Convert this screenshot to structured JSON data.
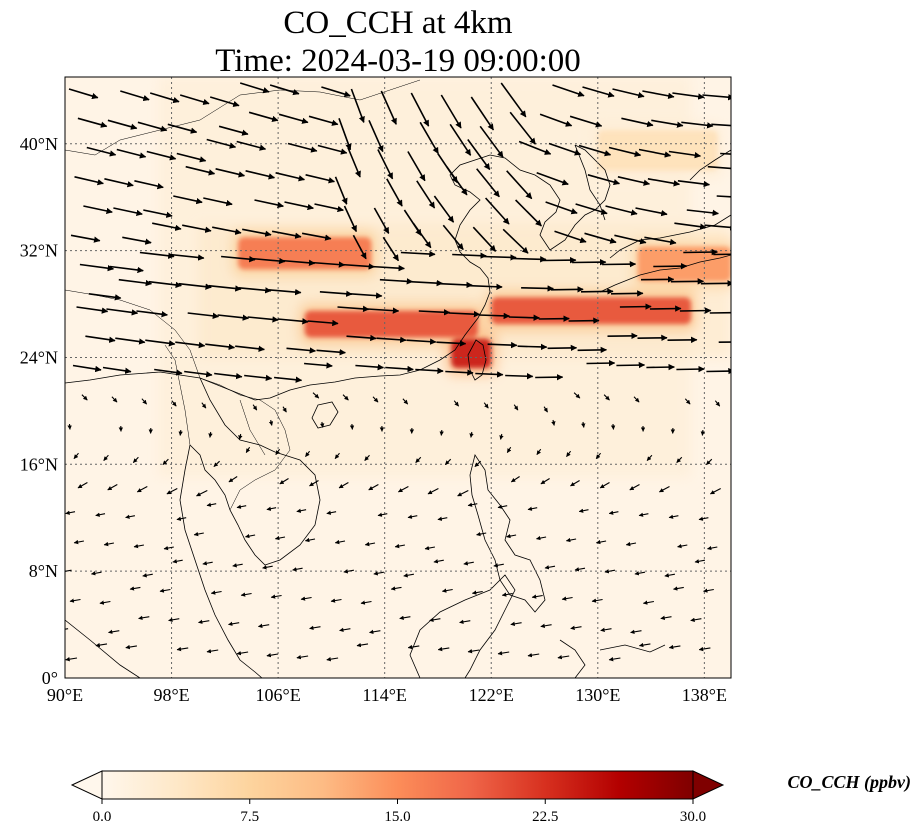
{
  "title": {
    "line1": "CO_CCH at 4km",
    "line2": "Time: 2024-03-19 09:00:00"
  },
  "map": {
    "projection": "PlateCarree",
    "lon_range": [
      90,
      140
    ],
    "lat_range": [
      0,
      45
    ],
    "lon_ticks": [
      {
        "value": 90,
        "label": "90°E"
      },
      {
        "value": 98,
        "label": "98°E"
      },
      {
        "value": 106,
        "label": "106°E"
      },
      {
        "value": 114,
        "label": "114°E"
      },
      {
        "value": 122,
        "label": "122°E"
      },
      {
        "value": 130,
        "label": "130°E"
      },
      {
        "value": 138,
        "label": "138°E"
      }
    ],
    "lat_ticks": [
      {
        "value": 0,
        "label": "0°"
      },
      {
        "value": 8,
        "label": "8°N"
      },
      {
        "value": 16,
        "label": "16°N"
      },
      {
        "value": 24,
        "label": "24°N"
      },
      {
        "value": 32,
        "label": "32°N"
      },
      {
        "value": 40,
        "label": "40°N"
      }
    ],
    "gridlines": true,
    "plume": [
      {
        "lon": [
          103,
          113
        ],
        "lat_center": 31.8,
        "lat_half_width": 1.2,
        "value": 17
      },
      {
        "lon": [
          108,
          121
        ],
        "lat_center": 26.5,
        "lat_half_width": 1.0,
        "value": 20
      },
      {
        "lon": [
          119,
          122
        ],
        "lat_center": 24.3,
        "lat_half_width": 1.1,
        "value": 24
      },
      {
        "lon": [
          122,
          137
        ],
        "lat_center": 27.5,
        "lat_half_width": 1.0,
        "value": 20
      },
      {
        "lon": [
          133,
          140
        ],
        "lat_center": 31.0,
        "lat_half_width": 1.3,
        "value": 14
      },
      {
        "lon": [
          130,
          139
        ],
        "lat_center": 39.5,
        "lat_half_width": 1.5,
        "value": 5
      }
    ],
    "wind_field": "streamers from NW over the north, westerly band near 24-30°N, easterly/north-easterly weak flow south of 20°N"
  },
  "colorbar": {
    "label": "CO_CCH (ppbv)",
    "min": 0.0,
    "max": 30.0,
    "extend": "both",
    "cmap": "OrRd",
    "colors": [
      "#fff7ec",
      "#fee8c8",
      "#fdd49e",
      "#fdbb84",
      "#fc8d59",
      "#ef6548",
      "#d7301f",
      "#b30000",
      "#7f0000"
    ],
    "ticks": [
      "0.0",
      "7.5",
      "15.0",
      "22.5",
      "30.0"
    ]
  }
}
